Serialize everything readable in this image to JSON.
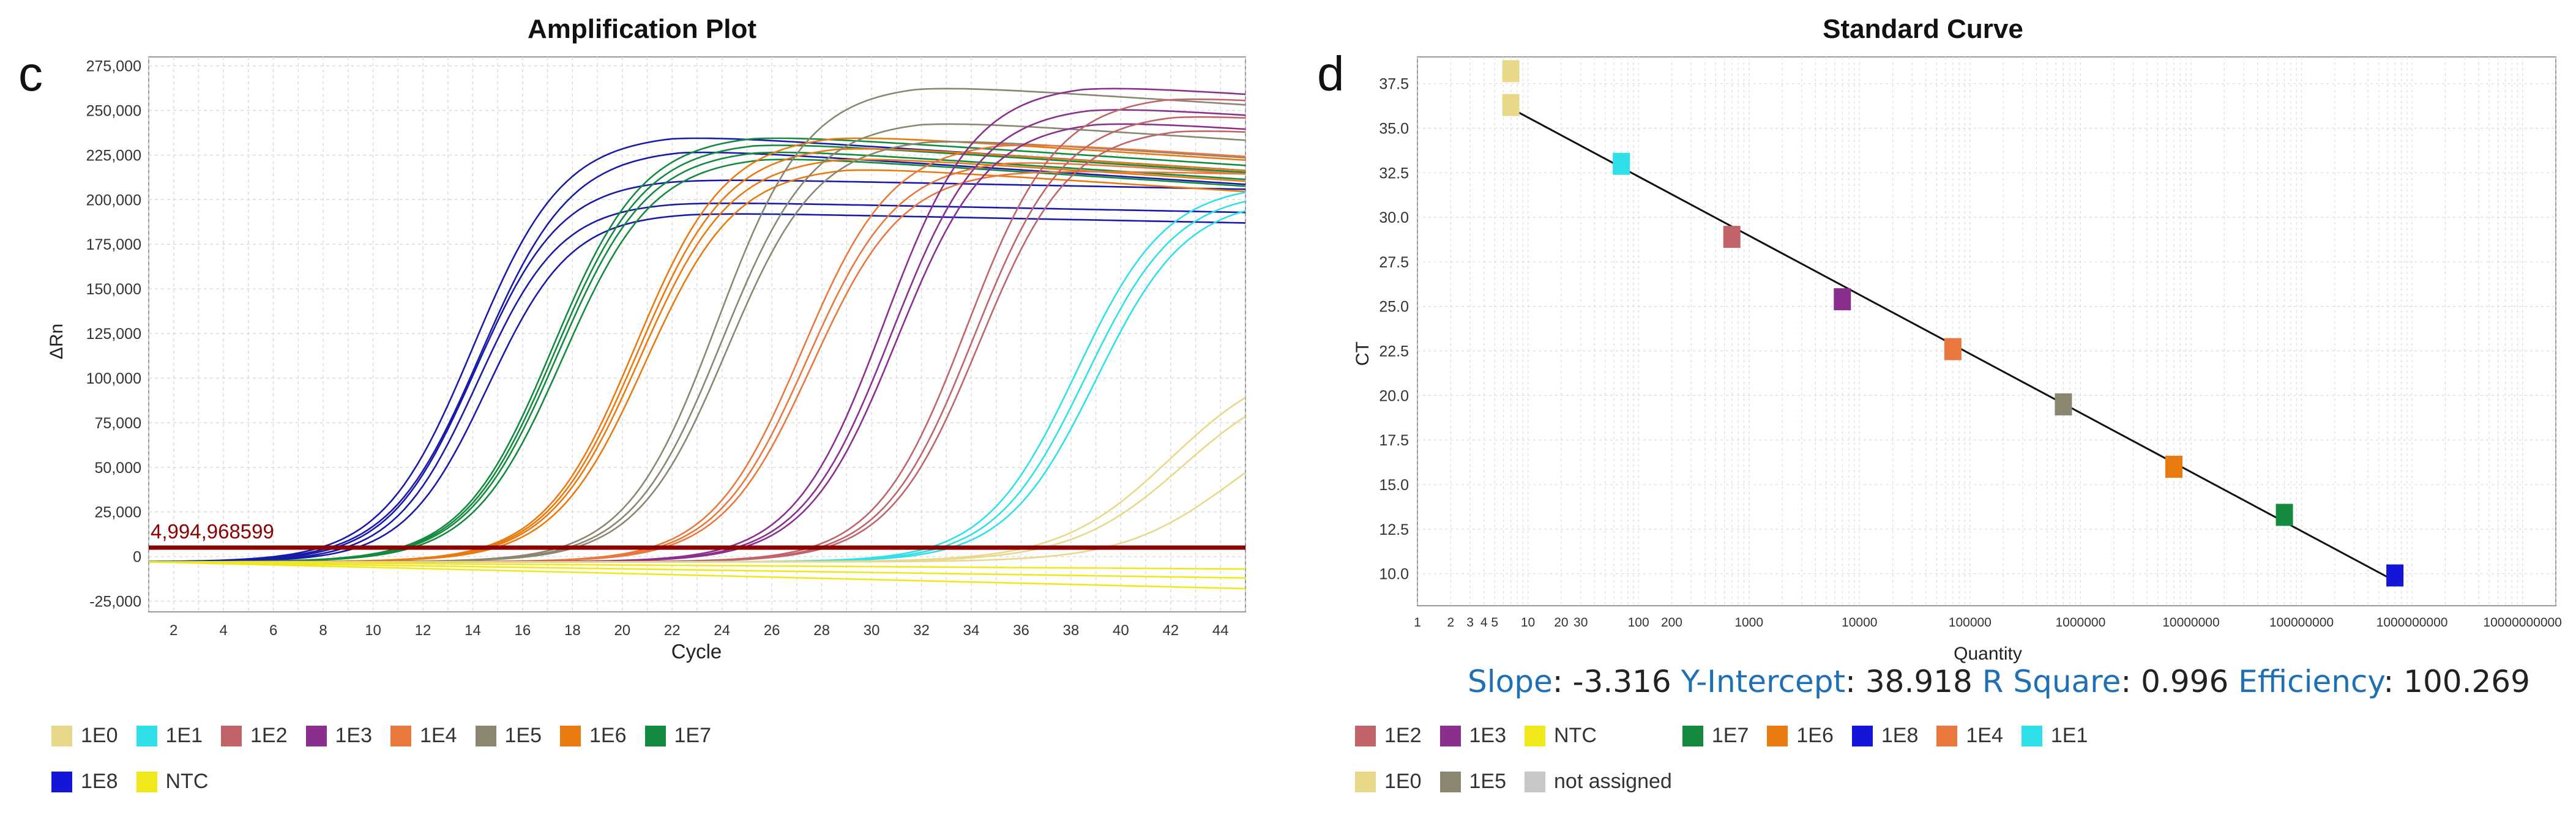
{
  "panel_letters": {
    "left": "c",
    "right": "d"
  },
  "chart_data": [
    {
      "type": "line",
      "title": "Amplification Plot",
      "xlabel": "Cycle",
      "ylabel": "ΔRn",
      "xlim": [
        1,
        45
      ],
      "ylim": [
        -31000,
        280000
      ],
      "grid": true,
      "x_ticks": [
        2,
        4,
        6,
        8,
        10,
        12,
        14,
        16,
        18,
        20,
        22,
        24,
        26,
        28,
        30,
        32,
        34,
        36,
        38,
        40,
        42,
        44
      ],
      "y_ticks": [
        -25000,
        0,
        25000,
        50000,
        75000,
        100000,
        125000,
        150000,
        175000,
        200000,
        225000,
        250000,
        275000
      ],
      "y_tick_labels": [
        "-25,000",
        "0",
        "25,000",
        "50,000",
        "75,000",
        "100,000",
        "125,000",
        "150,000",
        "175,000",
        "200,000",
        "225,000",
        "250,000",
        "275,000"
      ],
      "threshold": {
        "value": 4994.968599,
        "label": "4,994,968599",
        "color": "#8b0000"
      },
      "legend": [
        {
          "name": "1E0",
          "color": "#e8d88a"
        },
        {
          "name": "1E1",
          "color": "#2fe0e8"
        },
        {
          "name": "1E2",
          "color": "#c0646a"
        },
        {
          "name": "1E3",
          "color": "#8b2f8f"
        },
        {
          "name": "1E4",
          "color": "#e8783e"
        },
        {
          "name": "1E5",
          "color": "#8a8670"
        },
        {
          "name": "1E6",
          "color": "#e87a10"
        },
        {
          "name": "1E7",
          "color": "#138a3e"
        },
        {
          "name": "1E8",
          "color": "#1515d8"
        },
        {
          "name": "NTC",
          "color": "#f0e81a"
        }
      ],
      "series": [
        {
          "name": "1E8",
          "color": "#1a1aa8",
          "curves": [
            {
              "mid": 14.0,
              "plateau": 240000,
              "k": 0.55
            },
            {
              "mid": 14.3,
              "plateau": 232000,
              "k": 0.55
            },
            {
              "mid": 14.2,
              "plateau": 202000,
              "k": 0.6
            },
            {
              "mid": 14.6,
              "plateau": 196000,
              "k": 0.6
            },
            {
              "mid": 14.1,
              "plateau": 215000,
              "k": 0.58
            }
          ]
        },
        {
          "name": "1E7",
          "color": "#138a3e",
          "curves": [
            {
              "mid": 17.2,
              "plateau": 240000,
              "k": 0.55
            },
            {
              "mid": 17.4,
              "plateau": 232000,
              "k": 0.55
            },
            {
              "mid": 17.6,
              "plateau": 228000,
              "k": 0.55
            },
            {
              "mid": 17.3,
              "plateau": 236000,
              "k": 0.55
            }
          ]
        },
        {
          "name": "1E6",
          "color": "#e87a10",
          "curves": [
            {
              "mid": 20.5,
              "plateau": 240000,
              "k": 0.55
            },
            {
              "mid": 20.7,
              "plateau": 228000,
              "k": 0.55
            },
            {
              "mid": 20.9,
              "plateau": 222000,
              "k": 0.55
            },
            {
              "mid": 20.6,
              "plateau": 234000,
              "k": 0.55
            }
          ]
        },
        {
          "name": "1E5",
          "color": "#8a8670",
          "curves": [
            {
              "mid": 23.8,
              "plateau": 268000,
              "k": 0.55
            },
            {
              "mid": 24.0,
              "plateau": 248000,
              "k": 0.55
            },
            {
              "mid": 24.2,
              "plateau": 238000,
              "k": 0.55
            }
          ]
        },
        {
          "name": "1E4",
          "color": "#e8783e",
          "curves": [
            {
              "mid": 27.2,
              "plateau": 236000,
              "k": 0.55
            },
            {
              "mid": 27.4,
              "plateau": 226000,
              "k": 0.55
            },
            {
              "mid": 27.6,
              "plateau": 220000,
              "k": 0.55
            }
          ]
        },
        {
          "name": "1E3",
          "color": "#8b2f8f",
          "curves": [
            {
              "mid": 30.5,
              "plateau": 268000,
              "k": 0.55
            },
            {
              "mid": 30.8,
              "plateau": 256000,
              "k": 0.55
            },
            {
              "mid": 31.0,
              "plateau": 248000,
              "k": 0.55
            }
          ]
        },
        {
          "name": "1E2",
          "color": "#c0646a",
          "curves": [
            {
              "mid": 33.8,
              "plateau": 262000,
              "k": 0.55
            },
            {
              "mid": 34.1,
              "plateau": 252000,
              "k": 0.55
            },
            {
              "mid": 34.3,
              "plateau": 244000,
              "k": 0.55
            }
          ]
        },
        {
          "name": "1E1",
          "color": "#2fe0e8",
          "curves": [
            {
              "mid": 38.2,
              "plateau": 212000,
              "k": 0.55
            },
            {
              "mid": 38.6,
              "plateau": 208000,
              "k": 0.55
            },
            {
              "mid": 39.0,
              "plateau": 204000,
              "k": 0.55
            }
          ]
        },
        {
          "name": "1E0",
          "color": "#e8d88a",
          "curves": [
            {
              "mid": 42.0,
              "plateau": 116000,
              "k": 0.45
            },
            {
              "mid": 42.5,
              "plateau": 108000,
              "k": 0.45
            },
            {
              "mid": 44.5,
              "plateau": 90000,
              "k": 0.45
            }
          ]
        },
        {
          "name": "NTC",
          "color": "#f0e81a",
          "curves": [
            {
              "drift": -15000
            },
            {
              "drift": -9000
            },
            {
              "drift": -4000
            }
          ]
        }
      ]
    },
    {
      "type": "scatter",
      "title": "Standard Curve",
      "xlabel": "Quantity",
      "ylabel": "CT",
      "x_scale": "log",
      "xlim": [
        1,
        20000000000
      ],
      "ylim": [
        8.2,
        39.0
      ],
      "grid": true,
      "x_ticks": [
        1,
        2,
        3,
        4,
        5,
        10,
        20,
        30,
        100,
        200,
        1000,
        10000,
        100000,
        1000000,
        10000000,
        100000000,
        1000000000,
        10000000000
      ],
      "x_tick_labels": [
        "1",
        "2",
        "3",
        "4",
        "5",
        "10",
        "20",
        "30",
        "100",
        "200",
        "1000",
        "10000",
        "100000",
        "1000000",
        "10000000",
        "100000000",
        "1000000000",
        "10000000000"
      ],
      "y_ticks": [
        10.0,
        12.5,
        15.0,
        17.5,
        20.0,
        22.5,
        25.0,
        27.5,
        30.0,
        32.5,
        35.0,
        37.5
      ],
      "y_tick_labels": [
        "10.0",
        "12.5",
        "15.0",
        "17.5",
        "20.0",
        "22.5",
        "25.0",
        "27.5",
        "30.0",
        "32.5",
        "35.0",
        "37.5"
      ],
      "fit_line": {
        "slope": -3.316,
        "intercept": 38.918,
        "x_from": 7,
        "x_to": 800000000
      },
      "points": [
        {
          "name": "1E0",
          "x": 7,
          "y": 38.2,
          "color": "#e8d88a"
        },
        {
          "name": "1E0",
          "x": 7,
          "y": 36.3,
          "color": "#e8d88a"
        },
        {
          "name": "1E1",
          "x": 70,
          "y": 33.0,
          "color": "#2fe0e8"
        },
        {
          "name": "1E2",
          "x": 700,
          "y": 28.9,
          "color": "#c0646a"
        },
        {
          "name": "1E3",
          "x": 7000,
          "y": 25.4,
          "color": "#8b2f8f"
        },
        {
          "name": "1E4",
          "x": 70000,
          "y": 22.6,
          "color": "#e8783e"
        },
        {
          "name": "1E5",
          "x": 700000,
          "y": 19.5,
          "color": "#8a8670"
        },
        {
          "name": "1E6",
          "x": 7000000,
          "y": 16.0,
          "color": "#e87a10"
        },
        {
          "name": "1E7",
          "x": 70000000,
          "y": 13.3,
          "color": "#138a3e"
        },
        {
          "name": "1E8",
          "x": 700000000,
          "y": 9.9,
          "color": "#1515d8"
        }
      ],
      "stats": {
        "slope_label": "Slope",
        "slope": "-3.316",
        "intercept_label": "Y-Intercept",
        "intercept": "38.918",
        "r2_label": "R Square",
        "r2": "0.996",
        "efficiency_label": "Efficiency",
        "efficiency": "100.269"
      },
      "legend": [
        {
          "name": "1E2",
          "color": "#c0646a"
        },
        {
          "name": "1E3",
          "color": "#8b2f8f"
        },
        {
          "name": "NTC",
          "color": "#f0e81a"
        },
        {
          "name": "1E7",
          "color": "#138a3e"
        },
        {
          "name": "1E6",
          "color": "#e87a10"
        },
        {
          "name": "1E8",
          "color": "#1515d8"
        },
        {
          "name": "1E4",
          "color": "#e8783e"
        },
        {
          "name": "1E1",
          "color": "#2fe0e8"
        },
        {
          "name": "1E0",
          "color": "#e8d88a"
        },
        {
          "name": "1E5",
          "color": "#8a8670"
        },
        {
          "name": "not assigned",
          "color": "#c8c8c8"
        }
      ]
    }
  ]
}
